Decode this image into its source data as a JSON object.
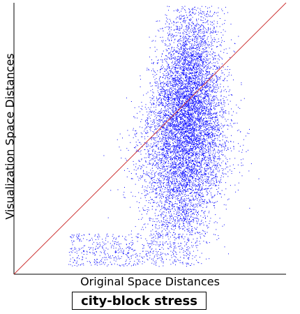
{
  "chart_data": {
    "type": "scatter",
    "title": "city-block stress",
    "xlabel": "Original Space Distances",
    "ylabel": "Visualization Space Distances",
    "xlim": [
      0,
      1
    ],
    "ylim": [
      0,
      1
    ],
    "grid": false,
    "legend": "none",
    "point_color": "#0000ff",
    "reference_line": {
      "from": [
        0,
        0
      ],
      "to": [
        1,
        1
      ],
      "color": "#cc3333"
    },
    "point_count": 9000,
    "distribution": {
      "core_x_center": 0.63,
      "core_x_spread": 0.055,
      "tail_x_min": 0.2,
      "y_min": 0.03,
      "y_max": 0.99,
      "y_center": 0.55,
      "y_spread": 0.22
    }
  }
}
